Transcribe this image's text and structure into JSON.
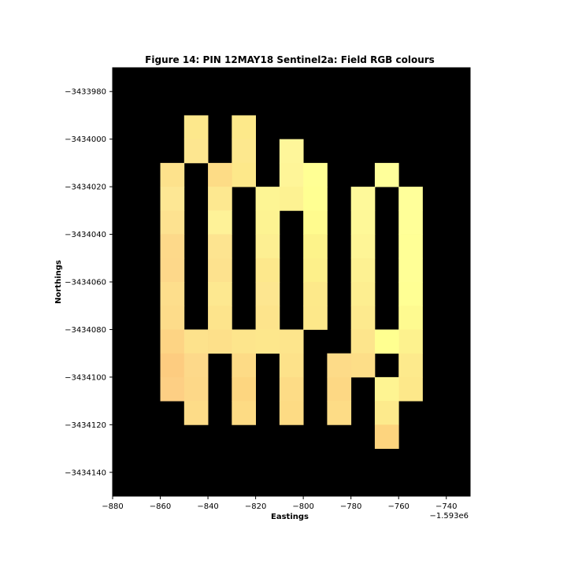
{
  "chart_data": {
    "type": "heatmap",
    "title": "Figure 14: PIN 12MAY18  Sentinel2a: Field RGB colours",
    "xlabel": "Eastings",
    "ylabel": "Northings",
    "x_offset_label": "−1.593e6",
    "xlim": [
      -880,
      -730
    ],
    "ylim": [
      -3434150,
      -3433970
    ],
    "y_inverted": true,
    "background_color": "#000000",
    "cell_size": 10,
    "x_ticks": [
      -880,
      -860,
      -840,
      -820,
      -800,
      -780,
      -760,
      -740
    ],
    "x_tick_labels": [
      "−880",
      "−860",
      "−840",
      "−820",
      "−800",
      "−780",
      "−760",
      "−740"
    ],
    "y_ticks": [
      -3433980,
      -3434000,
      -3434020,
      -3434040,
      -3434060,
      -3434080,
      -3434100,
      -3434120,
      -3434140
    ],
    "y_tick_labels": [
      "−3433980",
      "−3434000",
      "−3434020",
      "−3434040",
      "−3434060",
      "−3434080",
      "−3434100",
      "−3434120",
      "−3434140"
    ],
    "grid": false,
    "legend": "none",
    "cells": [
      {
        "x": -845,
        "y": -3433995,
        "color": "#fde88c"
      },
      {
        "x": -845,
        "y": -3434005,
        "color": "#fde690"
      },
      {
        "x": -825,
        "y": -3433995,
        "color": "#fde98a"
      },
      {
        "x": -825,
        "y": -3434005,
        "color": "#fde88e"
      },
      {
        "x": -825,
        "y": -3434015,
        "color": "#fde88a"
      },
      {
        "x": -805,
        "y": -3434005,
        "color": "#fef69a"
      },
      {
        "x": -805,
        "y": -3434015,
        "color": "#fef598"
      },
      {
        "x": -805,
        "y": -3434025,
        "color": "#fdf292"
      },
      {
        "x": -795,
        "y": -3434015,
        "color": "#ffff94"
      },
      {
        "x": -795,
        "y": -3434025,
        "color": "#ffff92"
      },
      {
        "x": -795,
        "y": -3434035,
        "color": "#fffb8e"
      },
      {
        "x": -795,
        "y": -3434045,
        "color": "#fdf38a"
      },
      {
        "x": -795,
        "y": -3434055,
        "color": "#fdf08a"
      },
      {
        "x": -795,
        "y": -3434065,
        "color": "#fde98a"
      },
      {
        "x": -795,
        "y": -3434075,
        "color": "#fde88a"
      },
      {
        "x": -765,
        "y": -3434015,
        "color": "#ffff9a"
      },
      {
        "x": -855,
        "y": -3434015,
        "color": "#fde28c"
      },
      {
        "x": -855,
        "y": -3434025,
        "color": "#fde794"
      },
      {
        "x": -855,
        "y": -3434035,
        "color": "#fde290"
      },
      {
        "x": -855,
        "y": -3434045,
        "color": "#fdd98a"
      },
      {
        "x": -855,
        "y": -3434055,
        "color": "#fdd88a"
      },
      {
        "x": -855,
        "y": -3434065,
        "color": "#fdde8c"
      },
      {
        "x": -855,
        "y": -3434075,
        "color": "#fddc8a"
      },
      {
        "x": -855,
        "y": -3434085,
        "color": "#fdd484"
      },
      {
        "x": -855,
        "y": -3434095,
        "color": "#fdcc80"
      },
      {
        "x": -855,
        "y": -3434105,
        "color": "#fdcf84"
      },
      {
        "x": -835,
        "y": -3434015,
        "color": "#fddc86"
      },
      {
        "x": -835,
        "y": -3434025,
        "color": "#fde890"
      },
      {
        "x": -835,
        "y": -3434035,
        "color": "#fef298"
      },
      {
        "x": -835,
        "y": -3434045,
        "color": "#fde490"
      },
      {
        "x": -835,
        "y": -3434055,
        "color": "#fde28e"
      },
      {
        "x": -835,
        "y": -3434065,
        "color": "#fde890"
      },
      {
        "x": -835,
        "y": -3434075,
        "color": "#fde48c"
      },
      {
        "x": -815,
        "y": -3434025,
        "color": "#fdf594"
      },
      {
        "x": -815,
        "y": -3434035,
        "color": "#fdf392"
      },
      {
        "x": -815,
        "y": -3434045,
        "color": "#fdef92"
      },
      {
        "x": -815,
        "y": -3434055,
        "color": "#fde88c"
      },
      {
        "x": -815,
        "y": -3434065,
        "color": "#fde690"
      },
      {
        "x": -815,
        "y": -3434075,
        "color": "#fde48c"
      },
      {
        "x": -775,
        "y": -3434025,
        "color": "#fef99a"
      },
      {
        "x": -775,
        "y": -3434035,
        "color": "#fef898"
      },
      {
        "x": -775,
        "y": -3434045,
        "color": "#fef596"
      },
      {
        "x": -775,
        "y": -3434055,
        "color": "#fdf192"
      },
      {
        "x": -775,
        "y": -3434065,
        "color": "#fdee90"
      },
      {
        "x": -775,
        "y": -3434075,
        "color": "#fdea8e"
      },
      {
        "x": -775,
        "y": -3434085,
        "color": "#fde58c"
      },
      {
        "x": -775,
        "y": -3434095,
        "color": "#fdde88"
      },
      {
        "x": -755,
        "y": -3434025,
        "color": "#ffff9a"
      },
      {
        "x": -755,
        "y": -3434035,
        "color": "#ffff98"
      },
      {
        "x": -755,
        "y": -3434045,
        "color": "#ffff96"
      },
      {
        "x": -755,
        "y": -3434055,
        "color": "#ffff96"
      },
      {
        "x": -755,
        "y": -3434065,
        "color": "#ffff94"
      },
      {
        "x": -755,
        "y": -3434075,
        "color": "#fefa90"
      },
      {
        "x": -755,
        "y": -3434085,
        "color": "#fdf28e"
      },
      {
        "x": -755,
        "y": -3434095,
        "color": "#fdea8c"
      },
      {
        "x": -755,
        "y": -3434105,
        "color": "#fde88a"
      },
      {
        "x": -845,
        "y": -3434085,
        "color": "#fde28c"
      },
      {
        "x": -845,
        "y": -3434095,
        "color": "#fdd98a"
      },
      {
        "x": -845,
        "y": -3434105,
        "color": "#fdd888"
      },
      {
        "x": -845,
        "y": -3434115,
        "color": "#fddc88"
      },
      {
        "x": -835,
        "y": -3434085,
        "color": "#fde08a"
      },
      {
        "x": -825,
        "y": -3434085,
        "color": "#fde58c"
      },
      {
        "x": -825,
        "y": -3434095,
        "color": "#fddb86"
      },
      {
        "x": -825,
        "y": -3434105,
        "color": "#fdd680"
      },
      {
        "x": -825,
        "y": -3434115,
        "color": "#fddb84"
      },
      {
        "x": -815,
        "y": -3434085,
        "color": "#fde78c"
      },
      {
        "x": -805,
        "y": -3434085,
        "color": "#fde58c"
      },
      {
        "x": -805,
        "y": -3434095,
        "color": "#fde28a"
      },
      {
        "x": -805,
        "y": -3434105,
        "color": "#fddc86"
      },
      {
        "x": -805,
        "y": -3434115,
        "color": "#fddb84"
      },
      {
        "x": -785,
        "y": -3434095,
        "color": "#fddb88"
      },
      {
        "x": -785,
        "y": -3434105,
        "color": "#fdd884"
      },
      {
        "x": -785,
        "y": -3434115,
        "color": "#fddc86"
      },
      {
        "x": -765,
        "y": -3434085,
        "color": "#ffff90"
      },
      {
        "x": -765,
        "y": -3434105,
        "color": "#fef492"
      },
      {
        "x": -765,
        "y": -3434115,
        "color": "#fdea8c"
      },
      {
        "x": -765,
        "y": -3434125,
        "color": "#fdd47e"
      }
    ]
  }
}
